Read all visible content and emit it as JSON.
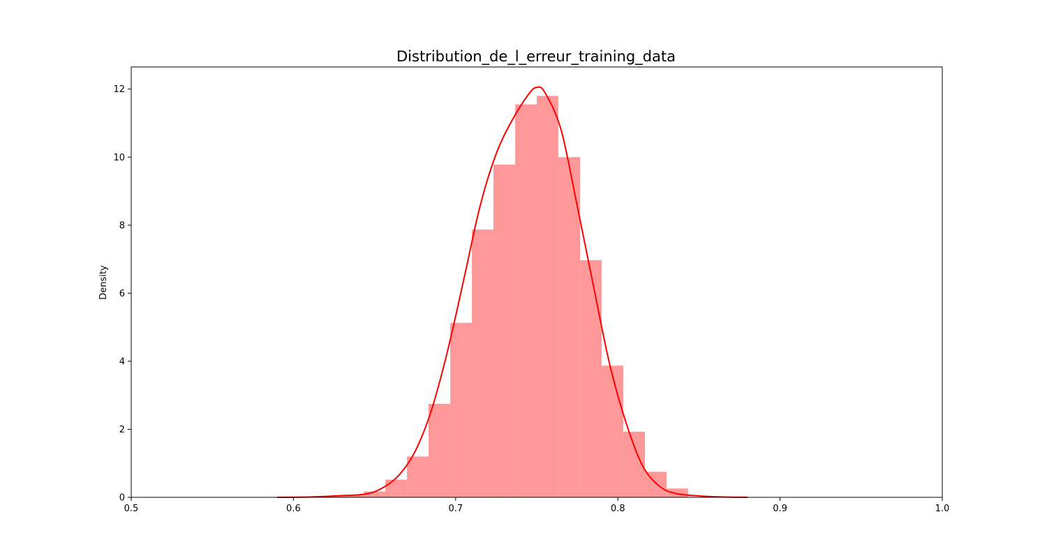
{
  "chart_data": {
    "type": "bar",
    "subtype": "histogram_with_kde",
    "title": "Distribution_de_l_erreur_training_data",
    "xlabel": "",
    "ylabel": "Density",
    "xlim": [
      0.5,
      1.0
    ],
    "ylim": [
      0,
      12.65
    ],
    "x_ticks": [
      0.5,
      0.6,
      0.7,
      0.8,
      0.9,
      1.0
    ],
    "x_tick_labels": [
      "0.5",
      "0.6",
      "0.7",
      "0.8",
      "0.9",
      "1.0"
    ],
    "y_ticks": [
      0,
      2,
      4,
      6,
      8,
      10,
      12
    ],
    "y_tick_labels": [
      "0",
      "2",
      "4",
      "6",
      "8",
      "10",
      "12"
    ],
    "grid": false,
    "bar_color": "#ff9999",
    "line_color": "#ff0000",
    "histogram": {
      "bin_edges": [
        0.59,
        0.6033,
        0.6167,
        0.63,
        0.6433,
        0.6567,
        0.67,
        0.6833,
        0.6967,
        0.71,
        0.7233,
        0.7367,
        0.75,
        0.7633,
        0.7767,
        0.79,
        0.8033,
        0.8167,
        0.83,
        0.8433
      ],
      "densities": [
        0.01,
        0.02,
        0.04,
        0.08,
        0.17,
        0.52,
        1.2,
        2.75,
        5.13,
        7.87,
        9.78,
        11.55,
        11.8,
        10.0,
        6.97,
        3.87,
        1.93,
        0.75,
        0.26
      ]
    },
    "kde": {
      "x": [
        0.59,
        0.61,
        0.63,
        0.645,
        0.655,
        0.665,
        0.675,
        0.685,
        0.695,
        0.705,
        0.715,
        0.725,
        0.735,
        0.745,
        0.75,
        0.755,
        0.765,
        0.775,
        0.785,
        0.795,
        0.805,
        0.815,
        0.825,
        0.835,
        0.85,
        0.865,
        0.88
      ],
      "y": [
        0.0,
        0.01,
        0.05,
        0.1,
        0.28,
        0.65,
        1.35,
        2.55,
        4.3,
        6.4,
        8.55,
        10.1,
        11.1,
        11.85,
        12.05,
        11.9,
        10.8,
        8.55,
        6.2,
        3.9,
        2.2,
        0.95,
        0.35,
        0.12,
        0.04,
        0.01,
        0.0
      ]
    }
  }
}
